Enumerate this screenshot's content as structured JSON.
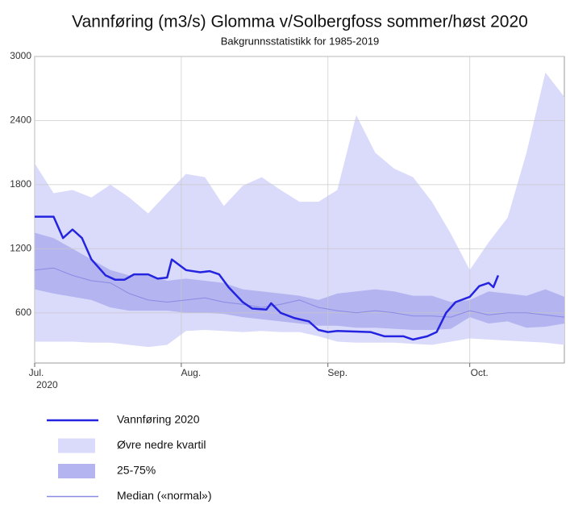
{
  "chart_data": {
    "type": "line",
    "title": "Vannføring (m3/s) Glomma v/Solbergfoss sommer/høst 2020",
    "subtitle": "Bakgrunnsstatistikk for 1985-2019",
    "xlim": [
      0,
      112
    ],
    "xticks": [
      {
        "value": 0,
        "label": "Jul."
      },
      {
        "value": 31,
        "label": "Aug."
      },
      {
        "value": 62,
        "label": "Sep."
      },
      {
        "value": 92,
        "label": "Oct."
      }
    ],
    "x_year": "2020",
    "ylim": [
      130,
      3000
    ],
    "yticks": [
      600,
      1200,
      1800,
      2400,
      3000
    ],
    "grid": true,
    "series": [
      {
        "name": "Vannføring 2020",
        "kind": "line",
        "color": "#2424e0",
        "width": 2.5,
        "x": [
          0,
          4,
          6,
          8,
          10,
          12,
          15,
          17,
          19,
          21,
          24,
          26,
          28,
          29,
          32,
          35,
          37,
          39,
          41,
          44,
          46,
          49,
          50,
          52,
          55,
          58,
          60,
          62,
          64,
          71,
          74,
          78,
          80,
          83,
          85,
          87,
          89,
          92,
          94,
          96,
          97,
          98
        ],
        "values": [
          1500,
          1500,
          1300,
          1380,
          1300,
          1100,
          950,
          910,
          910,
          960,
          960,
          920,
          930,
          1100,
          1000,
          980,
          990,
          960,
          840,
          700,
          640,
          630,
          690,
          600,
          550,
          520,
          440,
          420,
          430,
          420,
          380,
          380,
          350,
          380,
          420,
          600,
          700,
          750,
          850,
          880,
          840,
          950
        ]
      },
      {
        "name": "Øvre nedre kvartil",
        "kind": "band",
        "color": "#dadafb",
        "x": [
          0,
          4,
          8,
          12,
          16,
          20,
          24,
          28,
          32,
          36,
          40,
          44,
          48,
          52,
          56,
          60,
          64,
          68,
          72,
          76,
          80,
          84,
          88,
          92,
          96,
          100,
          104,
          108,
          112
        ],
        "upper": [
          2000,
          1720,
          1750,
          1680,
          1800,
          1680,
          1530,
          1720,
          1900,
          1870,
          1600,
          1790,
          1870,
          1750,
          1640,
          1640,
          1750,
          2450,
          2100,
          1950,
          1870,
          1640,
          1340,
          1000,
          1260,
          1490,
          2100,
          2850,
          2620
        ],
        "lower": [
          330,
          330,
          330,
          320,
          320,
          300,
          280,
          300,
          430,
          440,
          430,
          420,
          430,
          420,
          420,
          380,
          330,
          320,
          320,
          320,
          310,
          300,
          330,
          360,
          350,
          340,
          330,
          320,
          300
        ]
      },
      {
        "name": "25-75%",
        "kind": "band",
        "color": "#b4b4f0",
        "x": [
          0,
          4,
          8,
          12,
          16,
          20,
          24,
          28,
          32,
          36,
          40,
          44,
          48,
          52,
          56,
          60,
          64,
          68,
          72,
          76,
          80,
          84,
          88,
          92,
          96,
          100,
          104,
          108,
          112
        ],
        "upper": [
          1350,
          1300,
          1200,
          1100,
          1000,
          950,
          950,
          900,
          920,
          900,
          880,
          820,
          800,
          780,
          760,
          720,
          780,
          800,
          820,
          800,
          760,
          760,
          700,
          720,
          800,
          780,
          760,
          820,
          750
        ],
        "lower": [
          820,
          780,
          750,
          720,
          650,
          620,
          620,
          620,
          600,
          600,
          590,
          560,
          540,
          520,
          500,
          480,
          480,
          460,
          460,
          450,
          440,
          440,
          450,
          560,
          500,
          520,
          460,
          470,
          500
        ]
      },
      {
        "name": "Median («normal»)",
        "kind": "line",
        "color": "#8a8ae4",
        "width": 1,
        "x": [
          0,
          4,
          8,
          12,
          16,
          20,
          24,
          28,
          32,
          36,
          40,
          44,
          48,
          52,
          56,
          60,
          64,
          68,
          72,
          76,
          80,
          84,
          88,
          92,
          96,
          100,
          104,
          108,
          112
        ],
        "values": [
          1000,
          1020,
          950,
          900,
          880,
          780,
          720,
          700,
          720,
          740,
          700,
          680,
          650,
          680,
          720,
          650,
          620,
          600,
          620,
          600,
          570,
          570,
          560,
          620,
          580,
          600,
          600,
          580,
          560
        ]
      }
    ]
  }
}
